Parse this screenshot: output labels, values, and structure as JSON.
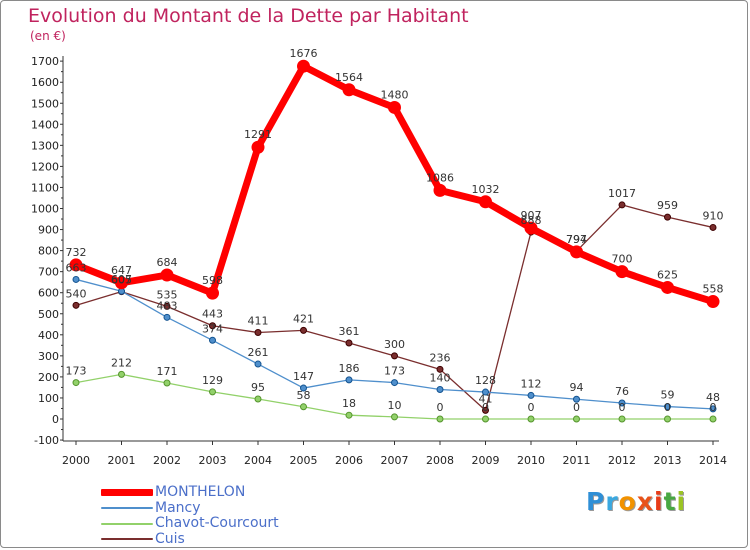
{
  "title": "Evolution du Montant de la Dette par Habitant",
  "unit_label": "(en €)",
  "logo": {
    "text": "Proxiti",
    "letters": [
      "P",
      "r",
      "o",
      "x",
      "i",
      "t",
      "i"
    ],
    "colors": [
      "#2f8fd6",
      "#3aa8e0",
      "#f29200",
      "#e8521a",
      "#e83c18",
      "#48a842",
      "#9bc424"
    ]
  },
  "chart_data": {
    "type": "line",
    "title": "Evolution du Montant de la Dette par Habitant",
    "ylabel": "(en €)",
    "xlabel": "",
    "x": [
      "2000",
      "2001",
      "2002",
      "2003",
      "2004",
      "2005",
      "2006",
      "2007",
      "2008",
      "2009",
      "2010",
      "2011",
      "2012",
      "2013",
      "2014"
    ],
    "yticks": [
      "-100",
      "0",
      "100",
      "200",
      "300",
      "400",
      "500",
      "600",
      "700",
      "800",
      "900",
      "1000",
      "1100",
      "1200",
      "1300",
      "1400",
      "1500",
      "1600",
      "1700"
    ],
    "ylim": [
      -100,
      1700
    ],
    "grid": false,
    "legend_position": "bottom-left",
    "series": [
      {
        "name": "MONTHELON",
        "color": "#ff0000",
        "width": "thick",
        "values": [
          732,
          647,
          684,
          598,
          1291,
          1676,
          1564,
          1480,
          1086,
          1032,
          907,
          794,
          700,
          625,
          558
        ],
        "labels": [
          "732",
          "647",
          "684",
          "598",
          "1291",
          "1676",
          "1564",
          "1480",
          "1086",
          "1032",
          "907",
          "794",
          "700",
          "625",
          "558"
        ]
      },
      {
        "name": "Mancy",
        "color": "#4f8fcc",
        "width": "thin",
        "values": [
          663,
          607,
          483,
          374,
          261,
          147,
          186,
          173,
          140,
          128,
          112,
          94,
          76,
          59,
          48
        ],
        "labels": [
          "663",
          "607",
          "483",
          "374",
          "261",
          "147",
          "186",
          "173",
          "140",
          "128",
          "112",
          "94",
          "76",
          "59",
          "48"
        ]
      },
      {
        "name": "Chavot-Courcourt",
        "color": "#92d16a",
        "width": "thin",
        "values": [
          173,
          212,
          171,
          129,
          95,
          58,
          18,
          10,
          0,
          0,
          0,
          0,
          0,
          0,
          0
        ],
        "labels": [
          "173",
          "212",
          "171",
          "129",
          "95",
          "58",
          "18",
          "10",
          "0",
          "0",
          "0",
          "0",
          "0",
          "0",
          "0"
        ]
      },
      {
        "name": "Cuis",
        "color": "#7a2e2e",
        "width": "thin",
        "values": [
          540,
          605,
          535,
          443,
          411,
          421,
          361,
          300,
          236,
          41,
          888,
          797,
          1017,
          959,
          910
        ],
        "labels": [
          "540",
          "605",
          "535",
          "443",
          "411",
          "421",
          "361",
          "300",
          "236",
          "41",
          "888",
          "797",
          "1017",
          "959",
          "910"
        ]
      }
    ]
  }
}
